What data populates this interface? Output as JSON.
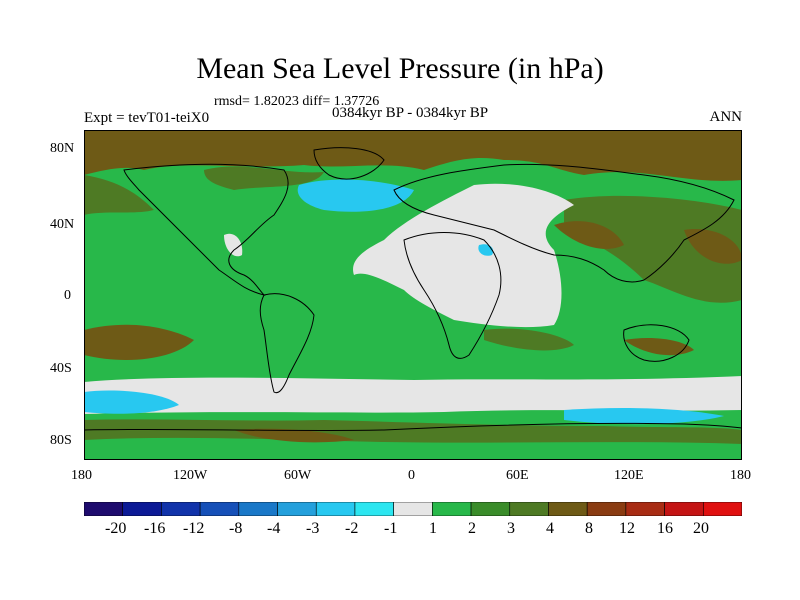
{
  "title": "Mean Sea Level Pressure (in hPa)",
  "stats": "rmsd= 1.82023 diff= 1.37726",
  "experiment": "Expt = tevT01-teiX0",
  "period": "0384kyr BP - 0384kyr BP",
  "season": "ANN",
  "lat_labels": [
    "80N",
    "40N",
    "0",
    "40S",
    "80S"
  ],
  "lon_labels": [
    "180",
    "120W",
    "60W",
    "0",
    "60E",
    "120E",
    "180"
  ],
  "colorbar": {
    "labels": [
      "-20",
      "-16",
      "-12",
      "-8",
      "-4",
      "-3",
      "-2",
      "-1",
      "1",
      "2",
      "3",
      "4",
      "8",
      "12",
      "16",
      "20"
    ],
    "colors": [
      "#1e0b6e",
      "#0c1a96",
      "#1133aa",
      "#1650b8",
      "#1a78c8",
      "#24a0dc",
      "#28c8f0",
      "#2ce6f0",
      "#e6e6e6",
      "#28b84a",
      "#3a8c2a",
      "#4e7a24",
      "#6e5a16",
      "#8a3c12",
      "#a82c14",
      "#c41414",
      "#e01010"
    ]
  },
  "palette": {
    "ocean_default": "#28b84a",
    "brown": "#6e5a16",
    "olive": "#4e7a24",
    "white": "#e6e6e6",
    "cyan": "#28c8f0"
  }
}
